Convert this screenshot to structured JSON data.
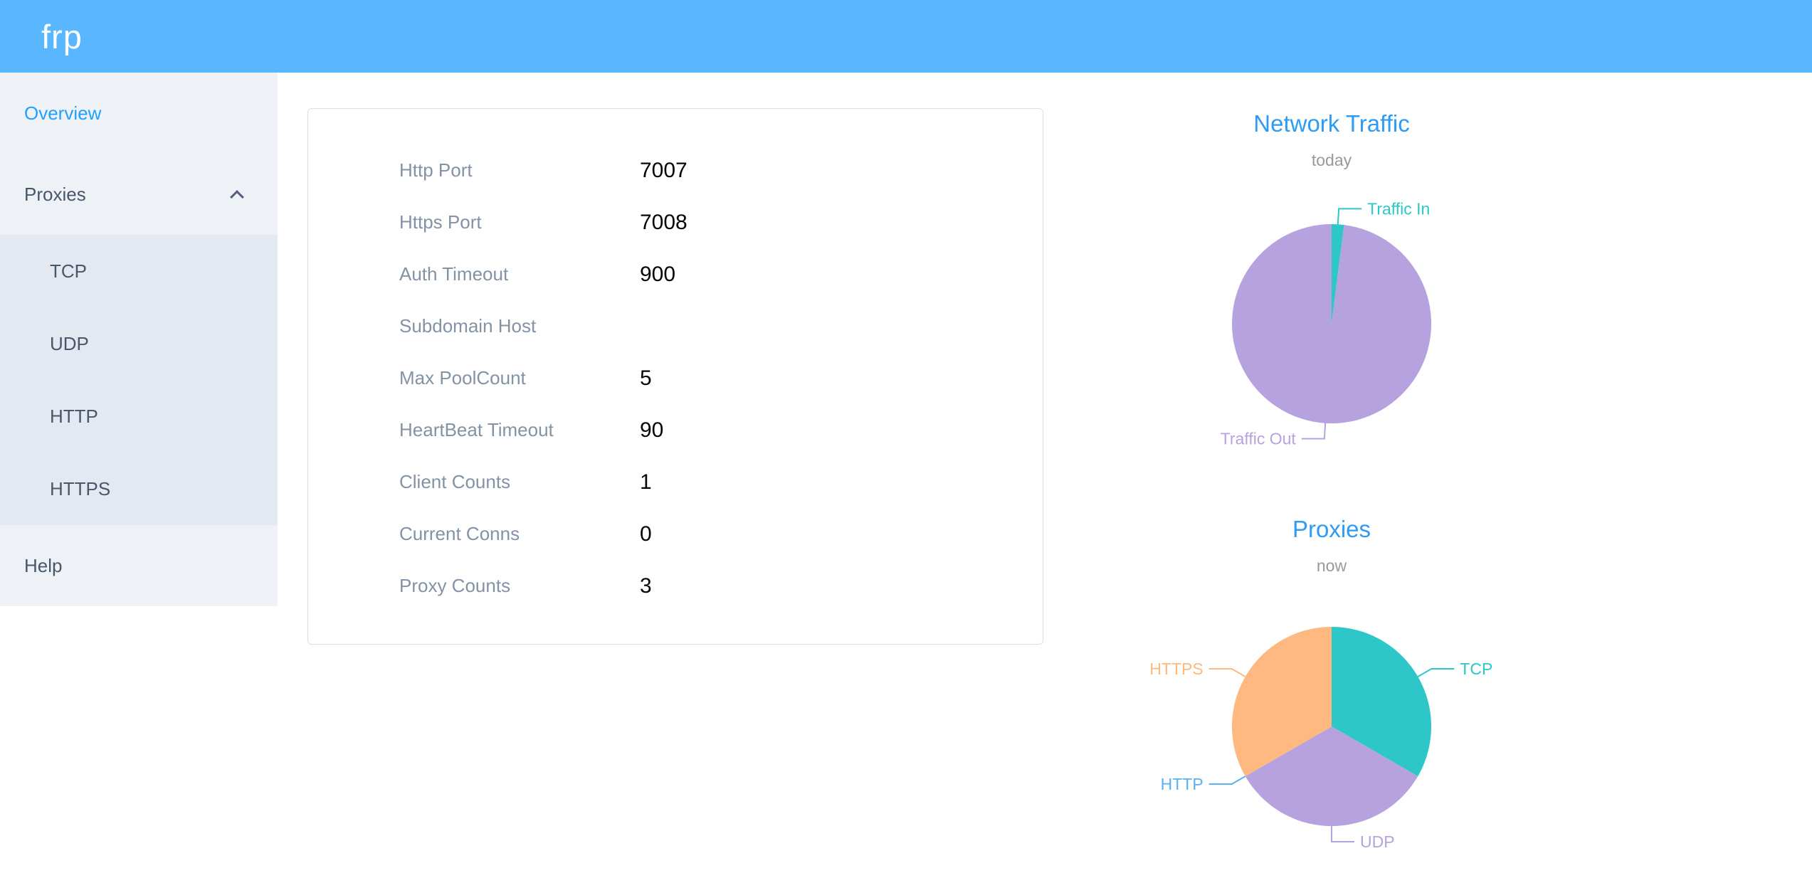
{
  "colors": {
    "header_bg": "#58b7ff",
    "active_link": "#20a0ff",
    "chart_title": "#2f9bf4",
    "sidebar_bg": "#eef1f6",
    "submenu_bg": "#e4e8f1"
  },
  "header": {
    "logo": "frp"
  },
  "sidebar": {
    "overview": "Overview",
    "proxies": "Proxies",
    "submenu": [
      "TCP",
      "UDP",
      "HTTP",
      "HTTPS"
    ],
    "help": "Help"
  },
  "server_info": {
    "rows": [
      {
        "label": "Http Port",
        "value": "7007"
      },
      {
        "label": "Https Port",
        "value": "7008"
      },
      {
        "label": "Auth Timeout",
        "value": "900"
      },
      {
        "label": "Subdomain Host",
        "value": ""
      },
      {
        "label": "Max PoolCount",
        "value": "5"
      },
      {
        "label": "HeartBeat Timeout",
        "value": "90"
      },
      {
        "label": "Client Counts",
        "value": "1"
      },
      {
        "label": "Current Conns",
        "value": "0"
      },
      {
        "label": "Proxy Counts",
        "value": "3"
      }
    ]
  },
  "chart_data": [
    {
      "type": "pie",
      "title": "Network Traffic",
      "subtitle": "today",
      "legend_position": "callout-labels",
      "series": [
        {
          "name": "Traffic In",
          "value": 2,
          "color": "#2ec7c9"
        },
        {
          "name": "Traffic Out",
          "value": 98,
          "color": "#b6a2de"
        }
      ]
    },
    {
      "type": "pie",
      "title": "Proxies",
      "subtitle": "now",
      "legend_position": "callout-labels",
      "series": [
        {
          "name": "TCP",
          "value": 1,
          "color": "#2ec7c9"
        },
        {
          "name": "UDP",
          "value": 1,
          "color": "#b6a2de"
        },
        {
          "name": "HTTP",
          "value": 0,
          "color": "#5ab1ef"
        },
        {
          "name": "HTTPS",
          "value": 1,
          "color": "#ffb980"
        }
      ]
    }
  ]
}
